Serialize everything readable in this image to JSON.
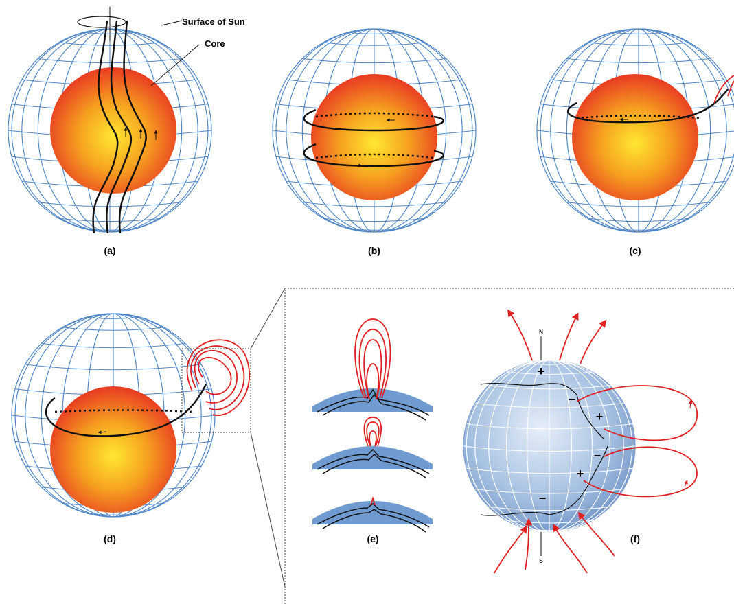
{
  "annotations": {
    "surface": "Surface of Sun",
    "core": "Core"
  },
  "panels": [
    {
      "label": "(a)"
    },
    {
      "label": "(b)"
    },
    {
      "label": "(c)"
    },
    {
      "label": "(d)"
    },
    {
      "label": "(e)"
    },
    {
      "label": "(f)"
    }
  ],
  "poles": {
    "north": "N",
    "south": "S"
  },
  "polarity": [
    "+",
    "−",
    "+",
    "−",
    "+",
    "−"
  ]
}
